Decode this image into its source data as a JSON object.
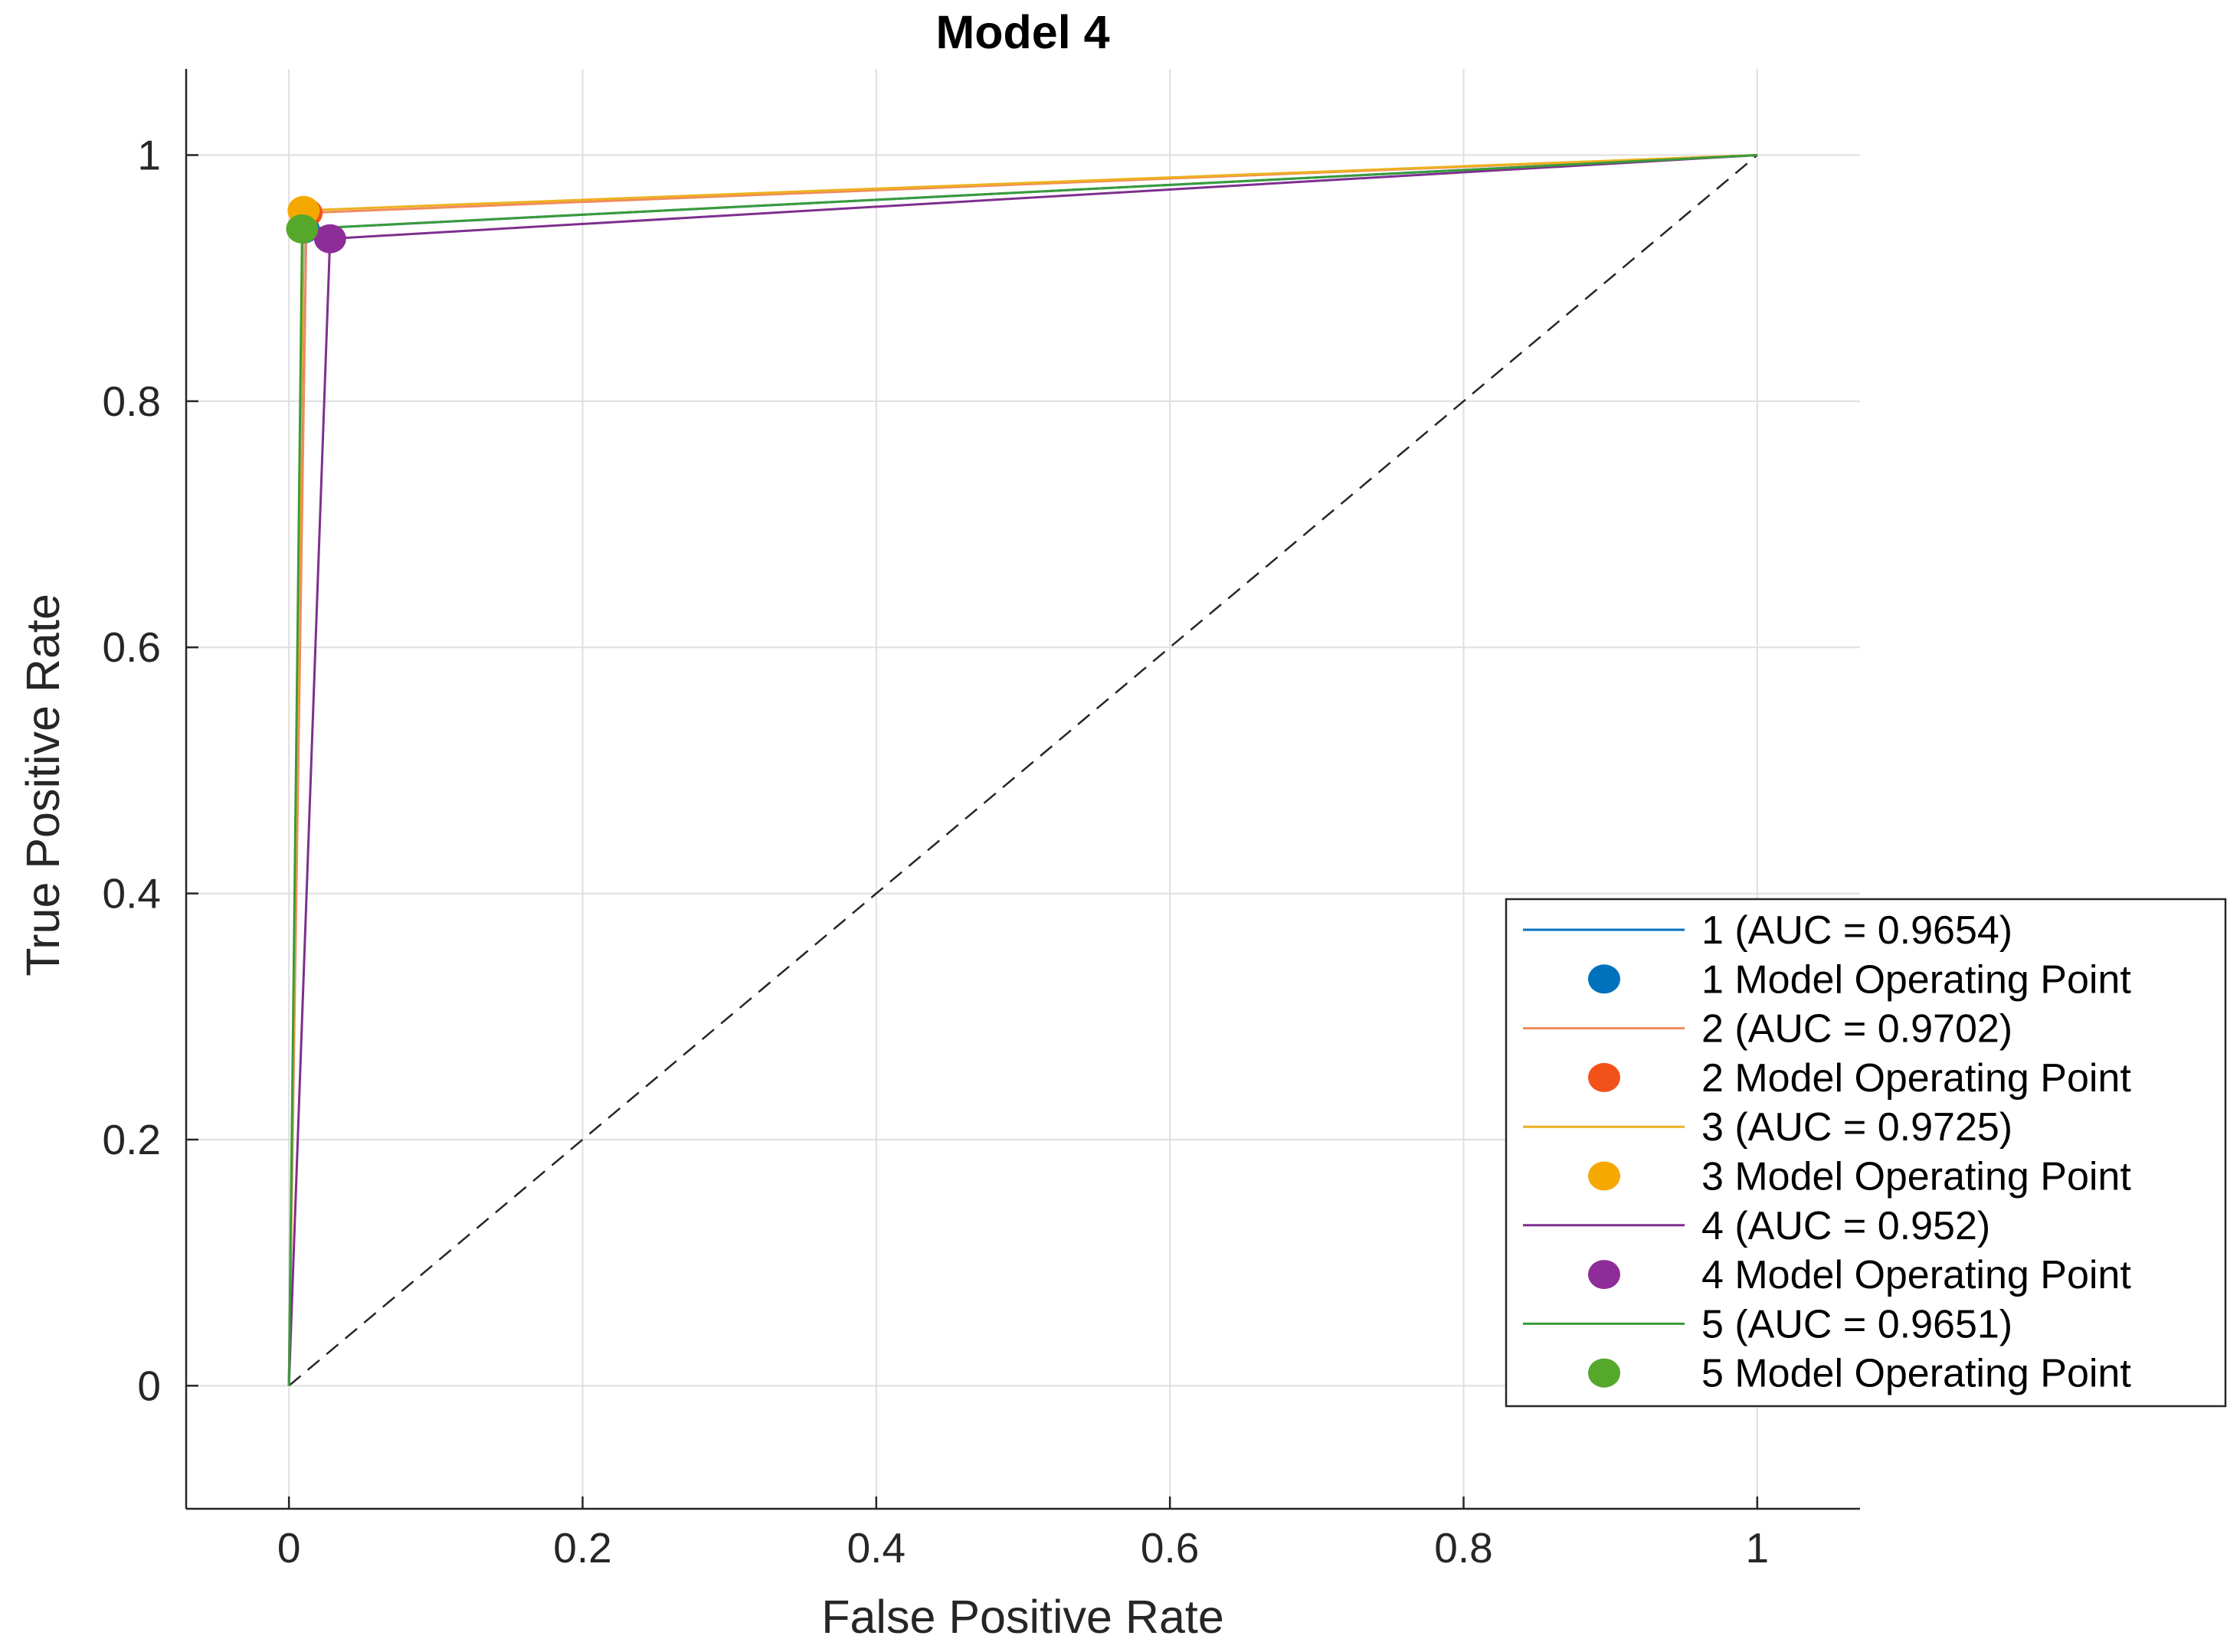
{
  "chart_data": {
    "type": "line",
    "title": "Model 4",
    "xlabel": "False Positive Rate",
    "ylabel": "True Positive Rate",
    "xlim": [
      -0.07,
      1.07
    ],
    "ylim": [
      -0.1,
      1.07
    ],
    "xticks": [
      0,
      0.2,
      0.4,
      0.6,
      0.8,
      1
    ],
    "yticks": [
      0,
      0.2,
      0.4,
      0.6,
      0.8,
      1
    ],
    "xtick_labels": [
      "0",
      "0.2",
      "0.4",
      "0.6",
      "0.8",
      "1"
    ],
    "ytick_labels": [
      "0",
      "0.2",
      "0.4",
      "0.6",
      "0.8",
      "1"
    ],
    "grid": true,
    "legend_position": "bottom-right",
    "diagonal": {
      "x": [
        0,
        1
      ],
      "y": [
        0,
        1
      ],
      "style": "dashed",
      "color": "#262626"
    },
    "series": [
      {
        "name": "1 (AUC = 0.9654)",
        "point_name": "1 Model Operating Point",
        "x": [
          0,
          0.01,
          1
        ],
        "y": [
          0,
          0.94,
          1
        ],
        "operating_point": [
          0.01,
          0.94
        ],
        "line_color": "#0072bd",
        "marker_color": "#0072bd"
      },
      {
        "name": "2 (AUC = 0.9702)",
        "point_name": "2 Model Operating Point",
        "x": [
          0,
          0.012,
          1
        ],
        "y": [
          0,
          0.953,
          1
        ],
        "operating_point": [
          0.012,
          0.953
        ],
        "line_color": "#f08a5d",
        "marker_color": "#f2521a"
      },
      {
        "name": "3 (AUC = 0.9725)",
        "point_name": "3 Model Operating Point",
        "x": [
          0,
          0.01,
          1
        ],
        "y": [
          0,
          0.955,
          1
        ],
        "operating_point": [
          0.01,
          0.955
        ],
        "line_color": "#edb120",
        "marker_color": "#f5a800"
      },
      {
        "name": "4 (AUC = 0.952)",
        "point_name": "4 Model Operating Point",
        "x": [
          0,
          0.028,
          1
        ],
        "y": [
          0,
          0.932,
          1
        ],
        "operating_point": [
          0.028,
          0.932
        ],
        "line_color": "#7e2f8e",
        "marker_color": "#8e2c98"
      },
      {
        "name": "5 (AUC = 0.9651)",
        "point_name": "5 Model Operating Point",
        "x": [
          0,
          0.009,
          1
        ],
        "y": [
          0,
          0.94,
          1
        ],
        "operating_point": [
          0.009,
          0.94
        ],
        "line_color": "#3a9b3a",
        "marker_color": "#55a82a"
      }
    ]
  }
}
